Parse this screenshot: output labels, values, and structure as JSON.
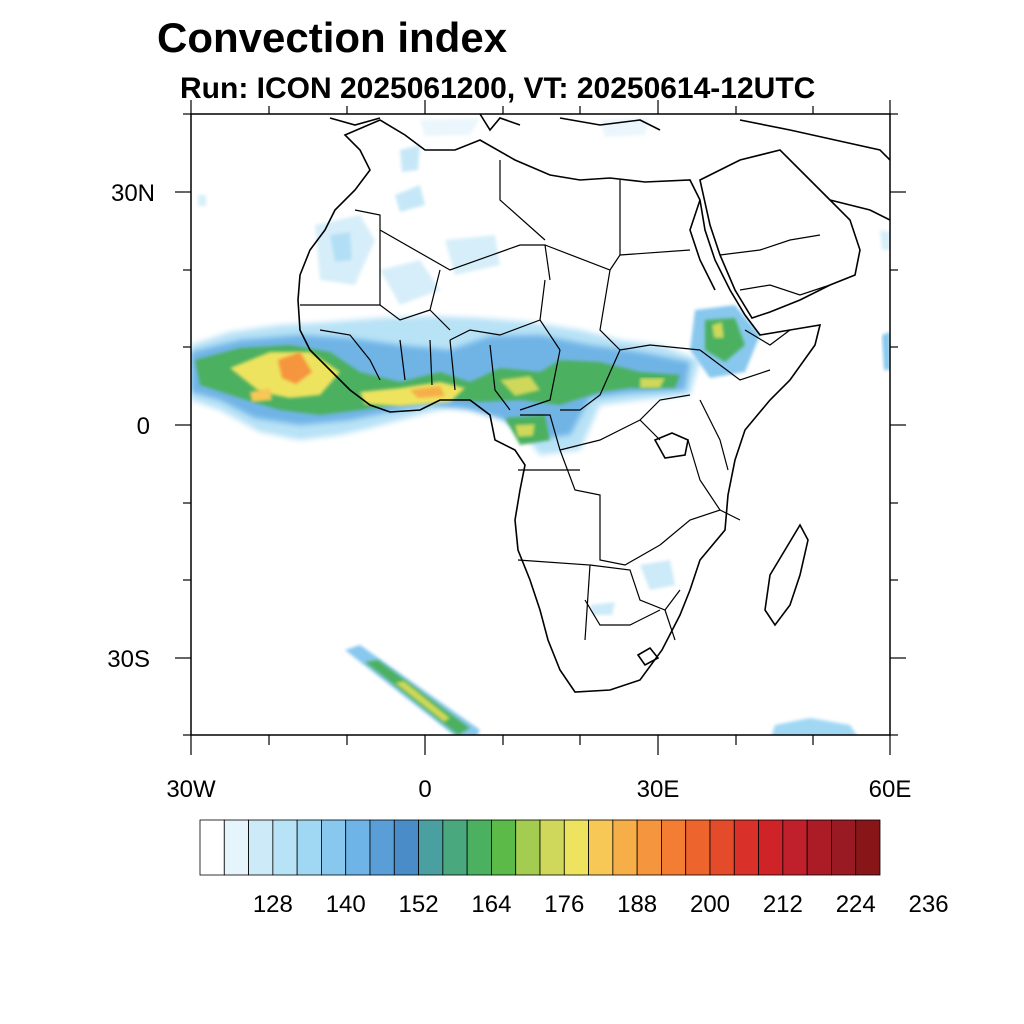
{
  "title": "Convection index",
  "subtitle": "Run: ICON 2025061200,  VT: 20250614-12UTC",
  "map": {
    "region": "Africa",
    "lon_range": [
      -30,
      60
    ],
    "lat_range": [
      -40,
      40
    ],
    "lat_ticks": [
      {
        "value": 30,
        "label": "30N"
      },
      {
        "value": 0,
        "label": "0"
      },
      {
        "value": -30,
        "label": "30S"
      }
    ],
    "lon_ticks": [
      {
        "value": -30,
        "label": "30W"
      },
      {
        "value": 0,
        "label": "0"
      },
      {
        "value": 30,
        "label": "30E"
      },
      {
        "value": 60,
        "label": "60E"
      }
    ]
  },
  "colorbar": {
    "colors": [
      "#ffffff",
      "#e6f4fb",
      "#cdeaf8",
      "#b8e2f6",
      "#a0d8f4",
      "#88c8ee",
      "#6fb4e6",
      "#5a9ed8",
      "#4a8cc8",
      "#4aa0a0",
      "#49a87e",
      "#4cb061",
      "#5cba48",
      "#a4cc50",
      "#cfd85a",
      "#eee35f",
      "#f7c855",
      "#f6ae48",
      "#f5953d",
      "#f27d33",
      "#ee642d",
      "#e44b2a",
      "#d93129",
      "#cf2328",
      "#c0202b",
      "#ab1c27",
      "#991a22",
      "#881619"
    ],
    "labels": [
      "128",
      "140",
      "152",
      "164",
      "176",
      "188",
      "200",
      "212",
      "224",
      "236"
    ]
  }
}
